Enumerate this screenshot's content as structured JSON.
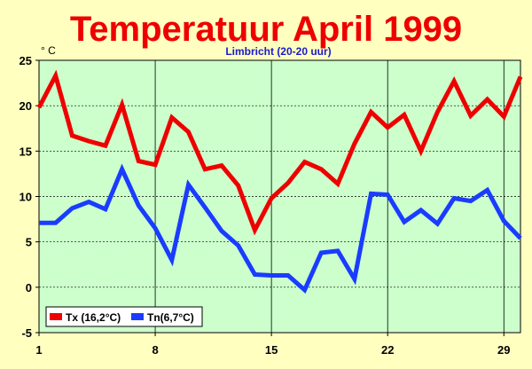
{
  "chart_data": {
    "type": "line",
    "title": "Temperatuur April 1999",
    "subtitle": "Limbricht (20-20 uur)",
    "ylabel": "° C",
    "xlim": [
      1,
      30
    ],
    "ylim": [
      -5,
      25
    ],
    "x_ticks": [
      1,
      8,
      15,
      22,
      29
    ],
    "y_ticks": [
      -5,
      0,
      5,
      10,
      15,
      20,
      25
    ],
    "grid": true,
    "legend_position": "bottom-left",
    "background_color": "#ffffc0",
    "plot_background_color": "#ccffcc",
    "x": [
      1,
      2,
      3,
      4,
      5,
      6,
      7,
      8,
      9,
      10,
      11,
      12,
      13,
      14,
      15,
      16,
      17,
      18,
      19,
      20,
      21,
      22,
      23,
      24,
      25,
      26,
      27,
      28,
      29,
      30
    ],
    "series": [
      {
        "name": "Tx (16,2°C)",
        "color": "#ee0000",
        "values": [
          19.8,
          23.3,
          16.7,
          16.1,
          15.6,
          20.1,
          13.9,
          13.5,
          18.7,
          17.1,
          13.0,
          13.4,
          11.2,
          6.3,
          9.8,
          11.5,
          13.8,
          13.0,
          11.4,
          15.8,
          19.3,
          17.6,
          19.0,
          15.0,
          19.3,
          22.7,
          18.9,
          20.7,
          18.8,
          23.2
        ]
      },
      {
        "name": "Tn(6,7°C)",
        "color": "#1a3cff",
        "values": [
          7.1,
          7.1,
          8.7,
          9.4,
          8.6,
          13.0,
          9.0,
          6.5,
          3.0,
          11.3,
          8.8,
          6.2,
          4.6,
          1.4,
          1.3,
          1.3,
          -0.3,
          3.8,
          4.0,
          0.9,
          10.3,
          10.2,
          7.2,
          8.5,
          7.0,
          9.8,
          9.5,
          10.7,
          7.3,
          5.4
        ]
      }
    ]
  }
}
